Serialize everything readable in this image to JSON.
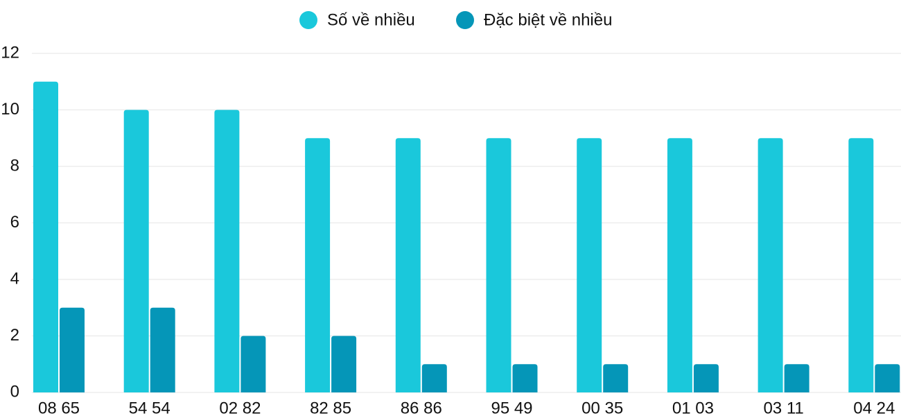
{
  "chart_data": {
    "type": "bar",
    "categories": [
      "08 65",
      "54 54",
      "02 82",
      "82 85",
      "86 86",
      "95 49",
      "00 35",
      "01 03",
      "03 11",
      "04 24"
    ],
    "series": [
      {
        "name": "Số về nhiều",
        "color": "#1ac8db",
        "values": [
          11,
          10,
          10,
          9,
          9,
          9,
          9,
          9,
          9,
          9
        ]
      },
      {
        "name": "Đặc biệt về nhiều",
        "color": "#0596b8",
        "values": [
          3,
          3,
          2,
          2,
          1,
          1,
          1,
          1,
          1,
          1
        ]
      }
    ],
    "ylim": [
      0,
      12
    ],
    "yticks": [
      0,
      2,
      4,
      6,
      8,
      10,
      12
    ],
    "grid": true,
    "legend": "top"
  }
}
